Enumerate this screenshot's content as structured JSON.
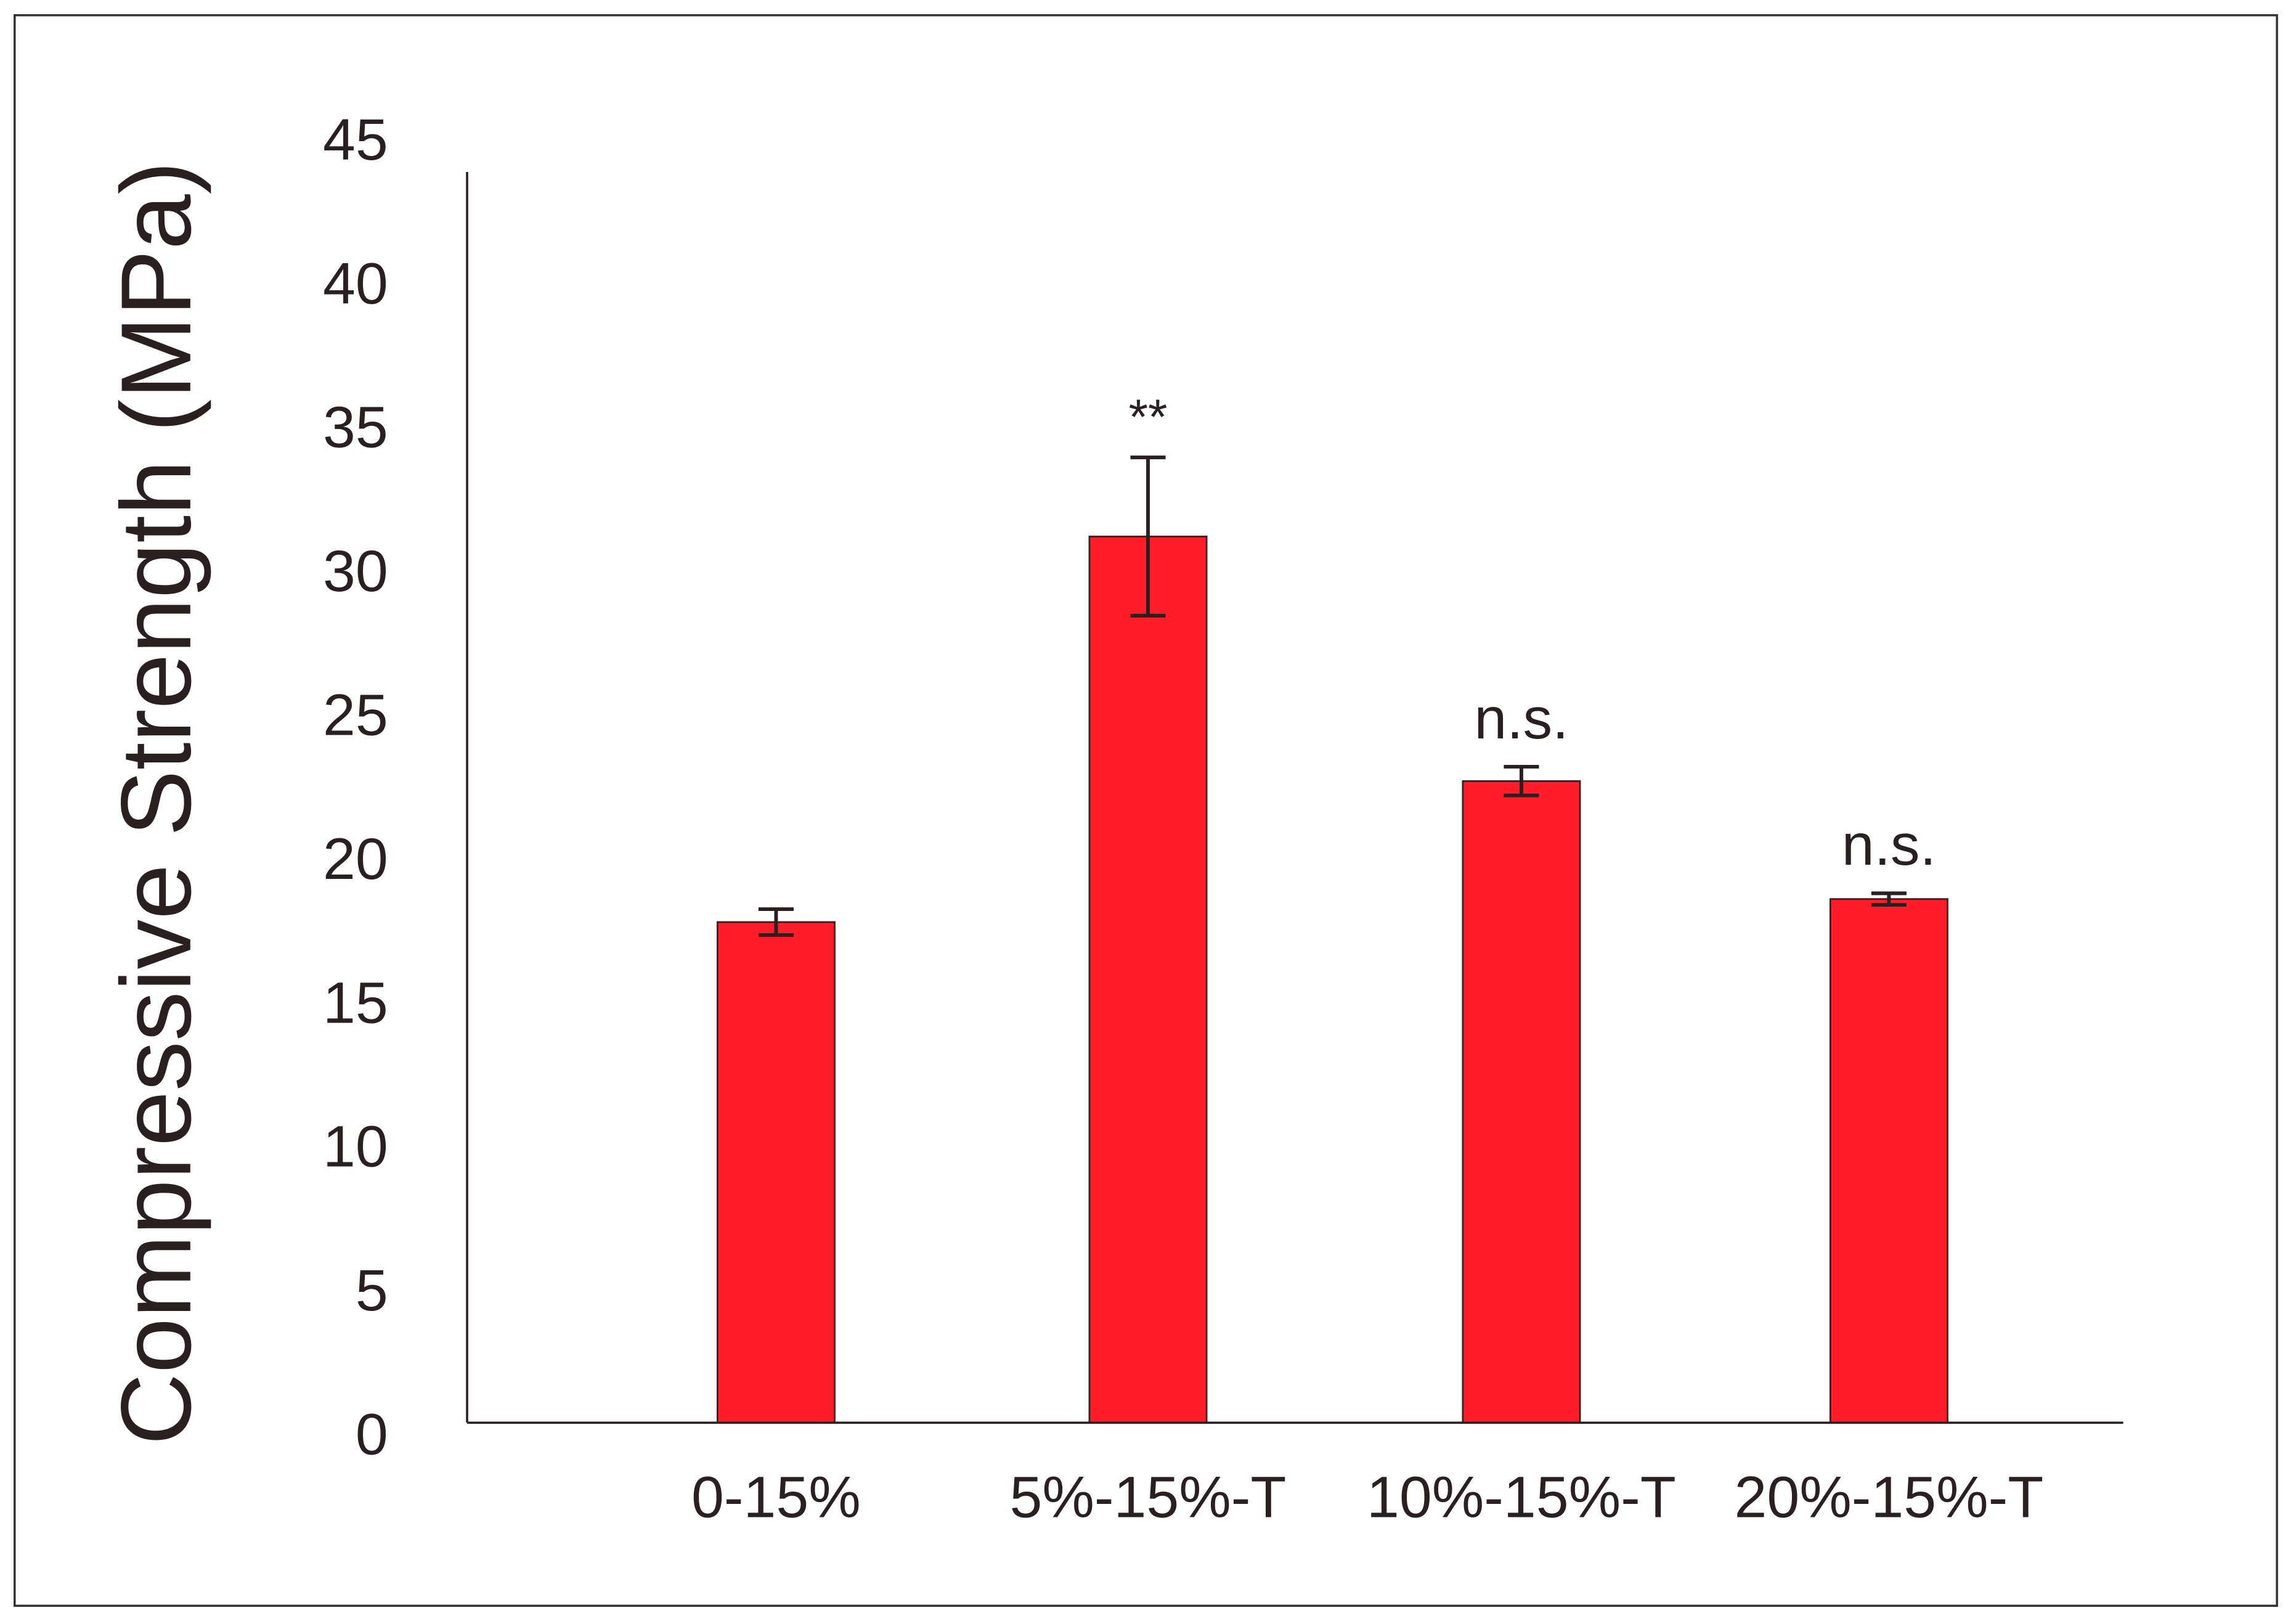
{
  "chart_data": {
    "type": "bar",
    "y_label": "Compressive Strength (MPa)",
    "categories": [
      "0-15%",
      "5%-15%-T",
      "10%-15%-T",
      "20%-15%-T"
    ],
    "values": [
      17.4,
      30.8,
      22.3,
      18.2
    ],
    "errors": [
      0.45,
      2.75,
      0.5,
      0.2
    ],
    "annotations": [
      null,
      "**",
      "n.s.",
      "n.s."
    ],
    "color": "#ff1d2a",
    "ylim": [
      0,
      45
    ],
    "yticks": [
      0,
      5,
      10,
      15,
      20,
      25,
      30,
      35,
      40,
      45
    ],
    "grid": false
  }
}
